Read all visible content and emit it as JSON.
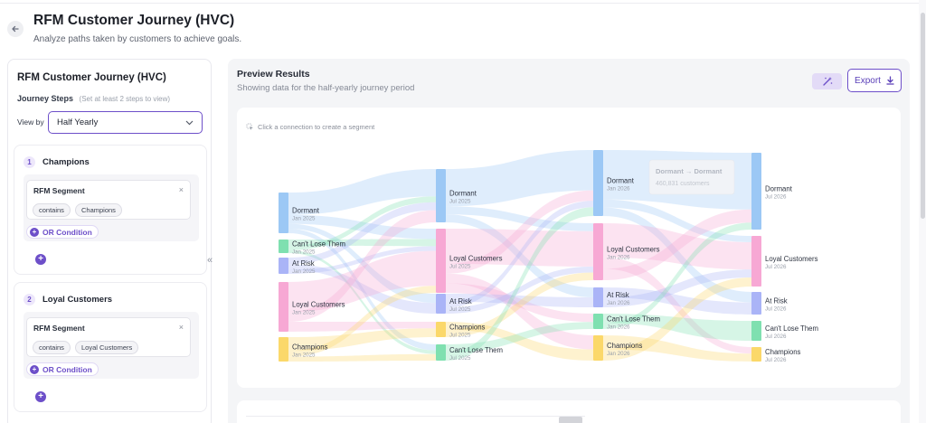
{
  "header": {
    "title": "RFM Customer Journey (HVC)",
    "subtitle": "Analyze paths taken by customers to achieve goals."
  },
  "left_panel": {
    "title": "RFM Customer Journey (HVC)",
    "steps_label": "Journey Steps",
    "steps_hint": "(Set at least 2 steps to view)",
    "view_by_label": "View by",
    "view_by_value": "Half Yearly",
    "steps": [
      {
        "number": "1",
        "name": "Champions",
        "condition_label": "RFM Segment",
        "operator": "contains",
        "value": "Champions",
        "or_label": "OR Condition"
      },
      {
        "number": "2",
        "name": "Loyal Customers",
        "condition_label": "RFM Segment",
        "operator": "contains",
        "value": "Loyal Customers",
        "or_label": "OR Condition"
      }
    ]
  },
  "preview": {
    "title": "Preview Results",
    "subtitle": "Showing data for the half-yearly journey period",
    "export_label": "Export",
    "hint": "Click a connection to create a segment"
  },
  "chart_data": {
    "type": "sankey",
    "tooltip": {
      "from": "Dormant",
      "arrow": "→",
      "to": "Dormant",
      "value": "460,831 customers"
    },
    "stages": [
      {
        "period": "Jan 2025",
        "nodes": [
          {
            "name": "Dormant",
            "color": "#9cc8f5"
          },
          {
            "name": "Can't Lose Them",
            "color": "#7fe0b0"
          },
          {
            "name": "At Risk",
            "color": "#aab4f7"
          },
          {
            "name": "Loyal Customers",
            "color": "#f7a8d4"
          },
          {
            "name": "Champions",
            "color": "#fbd86a"
          }
        ]
      },
      {
        "period": "Jul 2025",
        "nodes": [
          {
            "name": "Dormant",
            "color": "#9cc8f5"
          },
          {
            "name": "Loyal Customers",
            "color": "#f7a8d4"
          },
          {
            "name": "At Risk",
            "color": "#aab4f7"
          },
          {
            "name": "Champions",
            "color": "#fbd86a"
          },
          {
            "name": "Can't Lose Them",
            "color": "#7fe0b0"
          }
        ]
      },
      {
        "period": "Jan 2026",
        "nodes": [
          {
            "name": "Dormant",
            "color": "#9cc8f5"
          },
          {
            "name": "Loyal Customers",
            "color": "#f7a8d4"
          },
          {
            "name": "At Risk",
            "color": "#aab4f7"
          },
          {
            "name": "Can't Lose Them",
            "color": "#7fe0b0"
          },
          {
            "name": "Champions",
            "color": "#fbd86a"
          }
        ]
      },
      {
        "period": "Jul 2026",
        "nodes": [
          {
            "name": "Dormant",
            "color": "#9cc8f5"
          },
          {
            "name": "Loyal Customers",
            "color": "#f7a8d4"
          },
          {
            "name": "At Risk",
            "color": "#aab4f7"
          },
          {
            "name": "Can't Lose Them",
            "color": "#7fe0b0"
          },
          {
            "name": "Champions",
            "color": "#fbd86a"
          }
        ]
      }
    ]
  }
}
